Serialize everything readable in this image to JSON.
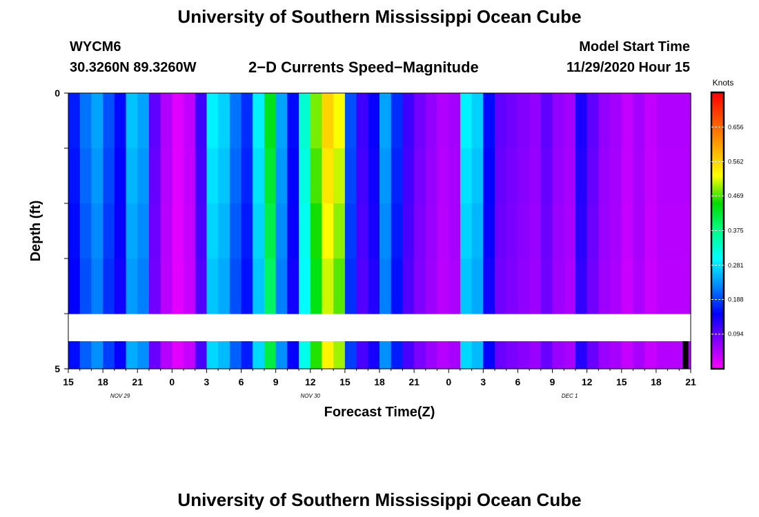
{
  "page": {
    "title_top": "University of Southern Mississippi Ocean Cube",
    "title_bottom": "University of Southern Mississippi Ocean Cube",
    "station_id": "WYCM6",
    "station_coords": "30.3260N 89.3260W",
    "plot_title": "2−D Currents Speed−Magnitude",
    "model_start_label": "Model Start Time",
    "model_start_value": "11/29/2020 Hour 15"
  },
  "chart_data": {
    "type": "heatmap",
    "title": "2−D Currents Speed−Magnitude",
    "xlabel": "Forecast Time(Z)",
    "ylabel": "Depth (ft)",
    "x_range_hours": [
      0,
      54
    ],
    "x_tick_labels": [
      "15",
      "18",
      "21",
      "0",
      "3",
      "6",
      "9",
      "12",
      "15",
      "18",
      "21",
      "0",
      "3",
      "6",
      "9",
      "12",
      "15",
      "18",
      "21"
    ],
    "date_labels": [
      {
        "text": "NOV  29",
        "hour": 4.5
      },
      {
        "text": "NOV  30",
        "hour": 21
      },
      {
        "text": "DEC  1",
        "hour": 43.5
      }
    ],
    "y_tick_labels": [
      "0",
      "5"
    ],
    "y_range_ft": [
      0,
      5
    ],
    "depth_levels_ft": [
      0,
      0.5,
      1.5,
      2.5,
      3.5,
      4.5
    ],
    "colorbar": {
      "unit": "Knots",
      "min": 0,
      "max": 0.75,
      "tick_labels": [
        "0.094",
        "0.188",
        "0.281",
        "0.375",
        "0.469",
        "0.562",
        "0.656"
      ],
      "colors": [
        "#ff00ff",
        "#8800ff",
        "#0000ff",
        "#0088ff",
        "#00ffff",
        "#00ff88",
        "#00dd00",
        "#ffff00",
        "#ffaa00",
        "#ff5500",
        "#ff0000"
      ]
    },
    "speed_by_hour": [
      0.17,
      0.22,
      0.25,
      0.2,
      0.16,
      0.27,
      0.25,
      0.1,
      0.05,
      0.02,
      0.04,
      0.12,
      0.3,
      0.28,
      0.22,
      0.18,
      0.3,
      0.45,
      0.25,
      0.16,
      0.34,
      0.5,
      0.58,
      0.54,
      0.2,
      0.12,
      0.15,
      0.25,
      0.18,
      0.12,
      0.09,
      0.07,
      0.05,
      0.06,
      0.3,
      0.28,
      0.16,
      0.1,
      0.09,
      0.08,
      0.07,
      0.1,
      0.07,
      0.06,
      0.14,
      0.1,
      0.07,
      0.06,
      0.04,
      0.06,
      0.04,
      0.05,
      0.05,
      0.05
    ],
    "depth_factor": [
      1.0,
      0.97,
      0.94,
      0.91,
      0.88,
      0.92
    ],
    "annotation": {
      "text": "marker",
      "hour_start": 53.3,
      "hour_end": 53.8,
      "depth_from_ft": 4.5,
      "depth_to_ft": 5
    }
  }
}
